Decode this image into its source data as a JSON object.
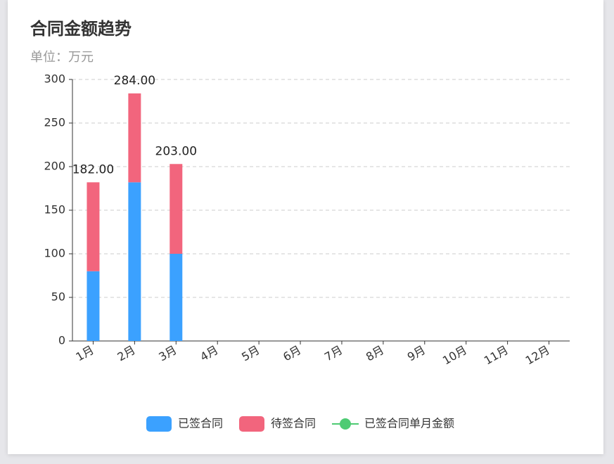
{
  "chart_data": {
    "type": "bar",
    "stacked": true,
    "title": "合同金额趋势",
    "subtitle": "单位：万元",
    "categories": [
      "1月",
      "2月",
      "3月",
      "4月",
      "5月",
      "6月",
      "7月",
      "8月",
      "9月",
      "10月",
      "11月",
      "12月"
    ],
    "series": [
      {
        "name": "已签合同",
        "color": "#3ba1ff",
        "type": "bar",
        "values": [
          80,
          182,
          100,
          null,
          null,
          null,
          null,
          null,
          null,
          null,
          null,
          null
        ]
      },
      {
        "name": "待签合同",
        "color": "#f2657d",
        "type": "bar",
        "values": [
          102,
          102,
          103,
          null,
          null,
          null,
          null,
          null,
          null,
          null,
          null,
          null
        ]
      },
      {
        "name": "已签合同单月金额",
        "color": "#4ecb73",
        "type": "line",
        "values": [
          null,
          null,
          null,
          null,
          null,
          null,
          null,
          null,
          null,
          null,
          null,
          null
        ]
      }
    ],
    "total_labels": [
      "182.00",
      "284.00",
      "203.00",
      null,
      null,
      null,
      null,
      null,
      null,
      null,
      null,
      null
    ],
    "ylim": [
      0,
      300
    ],
    "yticks": [
      0,
      50,
      100,
      150,
      200,
      250,
      300
    ],
    "grid": true,
    "legend": "bottom"
  }
}
